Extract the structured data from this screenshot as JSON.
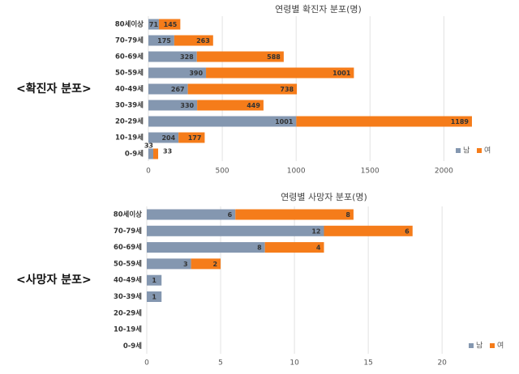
{
  "chart_data": [
    {
      "type": "bar",
      "orientation": "horizontal",
      "stacked": true,
      "section_label": "<확진자 분포>",
      "title": "연령별 확진자 분포(명)",
      "categories": [
        "80세이상",
        "70-79세",
        "60-69세",
        "50-59세",
        "40-49세",
        "30-39세",
        "20-29세",
        "10-19세",
        "0-9세"
      ],
      "series": [
        {
          "name": "남",
          "color": "#8497b0",
          "values": [
            71,
            175,
            328,
            390,
            267,
            330,
            1001,
            204,
            33
          ]
        },
        {
          "name": "여",
          "color": "#f57c1a",
          "values": [
            145,
            263,
            588,
            1001,
            738,
            449,
            1189,
            177,
            33
          ]
        }
      ],
      "xlim": [
        0,
        2300
      ],
      "xticks": [
        0,
        500,
        1000,
        1500,
        2000
      ],
      "grid": true,
      "legend": "lower right"
    },
    {
      "type": "bar",
      "orientation": "horizontal",
      "stacked": true,
      "section_label": "<사망자 분포>",
      "title": "연령별 사망자 분포(명)",
      "categories": [
        "80세이상",
        "70-79세",
        "60-69세",
        "50-59세",
        "40-49세",
        "30-39세",
        "20-29세",
        "10-19세",
        "0-9세"
      ],
      "series": [
        {
          "name": "남",
          "color": "#8497b0",
          "values": [
            6,
            12,
            8,
            3,
            1,
            1,
            0,
            0,
            0
          ]
        },
        {
          "name": "여",
          "color": "#f57c1a",
          "values": [
            8,
            6,
            4,
            2,
            0,
            0,
            0,
            0,
            0
          ]
        }
      ],
      "xlim": [
        0,
        24
      ],
      "xticks": [
        0,
        5,
        10,
        15,
        20
      ],
      "grid": true,
      "legend": "lower right"
    }
  ]
}
